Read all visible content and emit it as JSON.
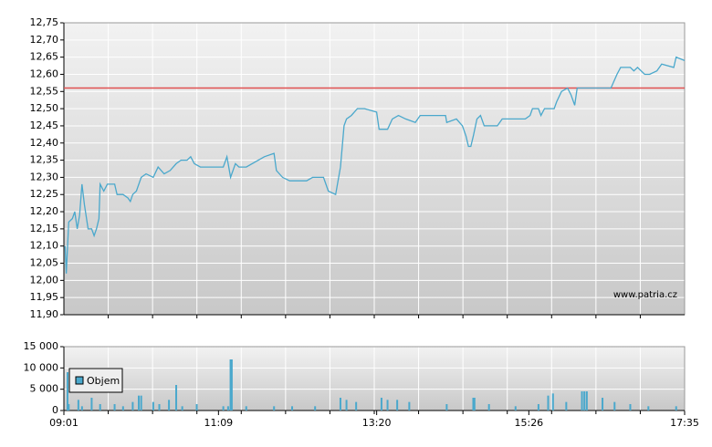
{
  "chart_data": [
    {
      "type": "line",
      "xlim": [
        "09:01",
        "17:35"
      ],
      "ylim": [
        11.9,
        12.75
      ],
      "yticks": [
        {
          "value": 11.9,
          "label": "11,90"
        },
        {
          "value": 11.95,
          "label": "11,95"
        },
        {
          "value": 12.0,
          "label": "12,00"
        },
        {
          "value": 12.05,
          "label": "12,05"
        },
        {
          "value": 12.1,
          "label": "12,10"
        },
        {
          "value": 12.15,
          "label": "12,15"
        },
        {
          "value": 12.2,
          "label": "12,20"
        },
        {
          "value": 12.25,
          "label": "12,25"
        },
        {
          "value": 12.3,
          "label": "12,30"
        },
        {
          "value": 12.35,
          "label": "12,35"
        },
        {
          "value": 12.4,
          "label": "12,40"
        },
        {
          "value": 12.45,
          "label": "12,45"
        },
        {
          "value": 12.5,
          "label": "12,50"
        },
        {
          "value": 12.55,
          "label": "12,55"
        },
        {
          "value": 12.6,
          "label": "12,60"
        },
        {
          "value": 12.65,
          "label": "12,65"
        },
        {
          "value": 12.7,
          "label": "12,70"
        },
        {
          "value": 12.75,
          "label": "12,75"
        }
      ],
      "grid": true,
      "reference_line": 12.56,
      "reference_color": "#e05050",
      "annotation": "www.patria.cz",
      "x": [
        "09:02",
        "09:03",
        "09:05",
        "09:08",
        "09:10",
        "09:12",
        "09:14",
        "09:16",
        "09:18",
        "09:21",
        "09:24",
        "09:26",
        "09:28",
        "09:30",
        "09:31",
        "09:34",
        "09:37",
        "09:43",
        "09:45",
        "09:50",
        "09:54",
        "09:56",
        "09:58",
        "10:01",
        "10:05",
        "10:09",
        "10:15",
        "10:19",
        "10:24",
        "10:29",
        "10:34",
        "10:38",
        "10:43",
        "10:46",
        "10:49",
        "10:54",
        "11:13",
        "11:16",
        "11:19",
        "11:23",
        "11:26",
        "11:32",
        "11:47",
        "11:55",
        "11:57",
        "12:02",
        "12:08",
        "12:22",
        "12:27",
        "12:36",
        "12:40",
        "12:46",
        "12:50",
        "12:53",
        "12:55",
        "12:59",
        "13:04",
        "13:10",
        "13:20",
        "13:22",
        "13:29",
        "13:33",
        "13:38",
        "13:44",
        "13:52",
        "13:56",
        "14:17",
        "14:18",
        "14:26",
        "14:31",
        "14:34",
        "14:36",
        "14:38",
        "14:40",
        "14:43",
        "14:46",
        "14:49",
        "15:00",
        "15:04",
        "15:23",
        "15:27",
        "15:29",
        "15:34",
        "15:36",
        "15:39",
        "15:47",
        "15:49",
        "15:53",
        "15:58",
        "16:01",
        "16:04",
        "16:06",
        "16:34",
        "16:39",
        "16:42",
        "16:50",
        "16:53",
        "16:56",
        "17:02",
        "17:06",
        "17:12",
        "17:16",
        "17:26",
        "17:28",
        "17:35"
      ],
      "series": [
        {
          "color": "#4aa8cc",
          "values": [
            12.1,
            12.02,
            12.17,
            12.18,
            12.2,
            12.15,
            12.19,
            12.28,
            12.22,
            12.15,
            12.15,
            12.13,
            12.15,
            12.18,
            12.28,
            12.26,
            12.28,
            12.28,
            12.25,
            12.25,
            12.24,
            12.23,
            12.25,
            12.26,
            12.3,
            12.31,
            12.3,
            12.33,
            12.31,
            12.32,
            12.34,
            12.35,
            12.35,
            12.36,
            12.34,
            12.33,
            12.33,
            12.36,
            12.3,
            12.34,
            12.33,
            12.33,
            12.36,
            12.37,
            12.32,
            12.3,
            12.29,
            12.29,
            12.3,
            12.3,
            12.26,
            12.25,
            12.33,
            12.45,
            12.47,
            12.48,
            12.5,
            12.5,
            12.49,
            12.44,
            12.44,
            12.47,
            12.48,
            12.47,
            12.46,
            12.48,
            12.48,
            12.46,
            12.47,
            12.45,
            12.42,
            12.39,
            12.39,
            12.42,
            12.47,
            12.48,
            12.45,
            12.45,
            12.47,
            12.47,
            12.48,
            12.5,
            12.5,
            12.48,
            12.5,
            12.5,
            12.52,
            12.55,
            12.56,
            12.54,
            12.51,
            12.56,
            12.56,
            12.6,
            12.62,
            12.62,
            12.61,
            12.62,
            12.6,
            12.6,
            12.61,
            12.63,
            12.62,
            12.65,
            12.64
          ]
        }
      ]
    },
    {
      "type": "bar",
      "xlim": [
        "09:01",
        "17:35"
      ],
      "xticks": [
        "09:01",
        "11:09",
        "13:20",
        "15:26",
        "17:35"
      ],
      "ylim": [
        0,
        15000
      ],
      "yticks": [
        0,
        {
          "value": 5000,
          "label": "5 000"
        },
        {
          "value": 10000,
          "label": "10 000"
        },
        {
          "value": 15000,
          "label": "15 000"
        }
      ],
      "grid": true,
      "legend": "top-left",
      "x": [
        "09:04",
        "09:05",
        "09:13",
        "09:16",
        "09:24",
        "09:31",
        "09:43",
        "09:50",
        "09:58",
        "10:03",
        "10:05",
        "10:15",
        "10:20",
        "10:28",
        "10:34",
        "10:39",
        "10:51",
        "11:13",
        "11:17",
        "11:19",
        "11:20",
        "11:32",
        "11:55",
        "12:10",
        "12:29",
        "12:50",
        "12:55",
        "13:03",
        "13:24",
        "13:29",
        "13:37",
        "13:47",
        "14:18",
        "14:40",
        "14:41",
        "14:53",
        "15:15",
        "15:34",
        "15:42",
        "15:46",
        "15:57",
        "16:10",
        "16:12",
        "16:14",
        "16:27",
        "16:37",
        "16:50",
        "17:05",
        "17:28"
      ],
      "series": [
        {
          "name": "Objem",
          "color": "#4aa8cc",
          "values": [
            9000,
            1500,
            2500,
            1000,
            3000,
            1500,
            1500,
            1000,
            2000,
            3500,
            3500,
            2000,
            1500,
            2500,
            6000,
            1000,
            1500,
            1000,
            1000,
            12000,
            12000,
            1000,
            1000,
            1000,
            1000,
            3000,
            2500,
            2000,
            3000,
            2500,
            2500,
            2000,
            1500,
            3000,
            3000,
            1500,
            1000,
            1500,
            3500,
            4000,
            2000,
            4500,
            4500,
            4500,
            3000,
            2000,
            1500,
            1000,
            1000
          ]
        }
      ]
    }
  ]
}
